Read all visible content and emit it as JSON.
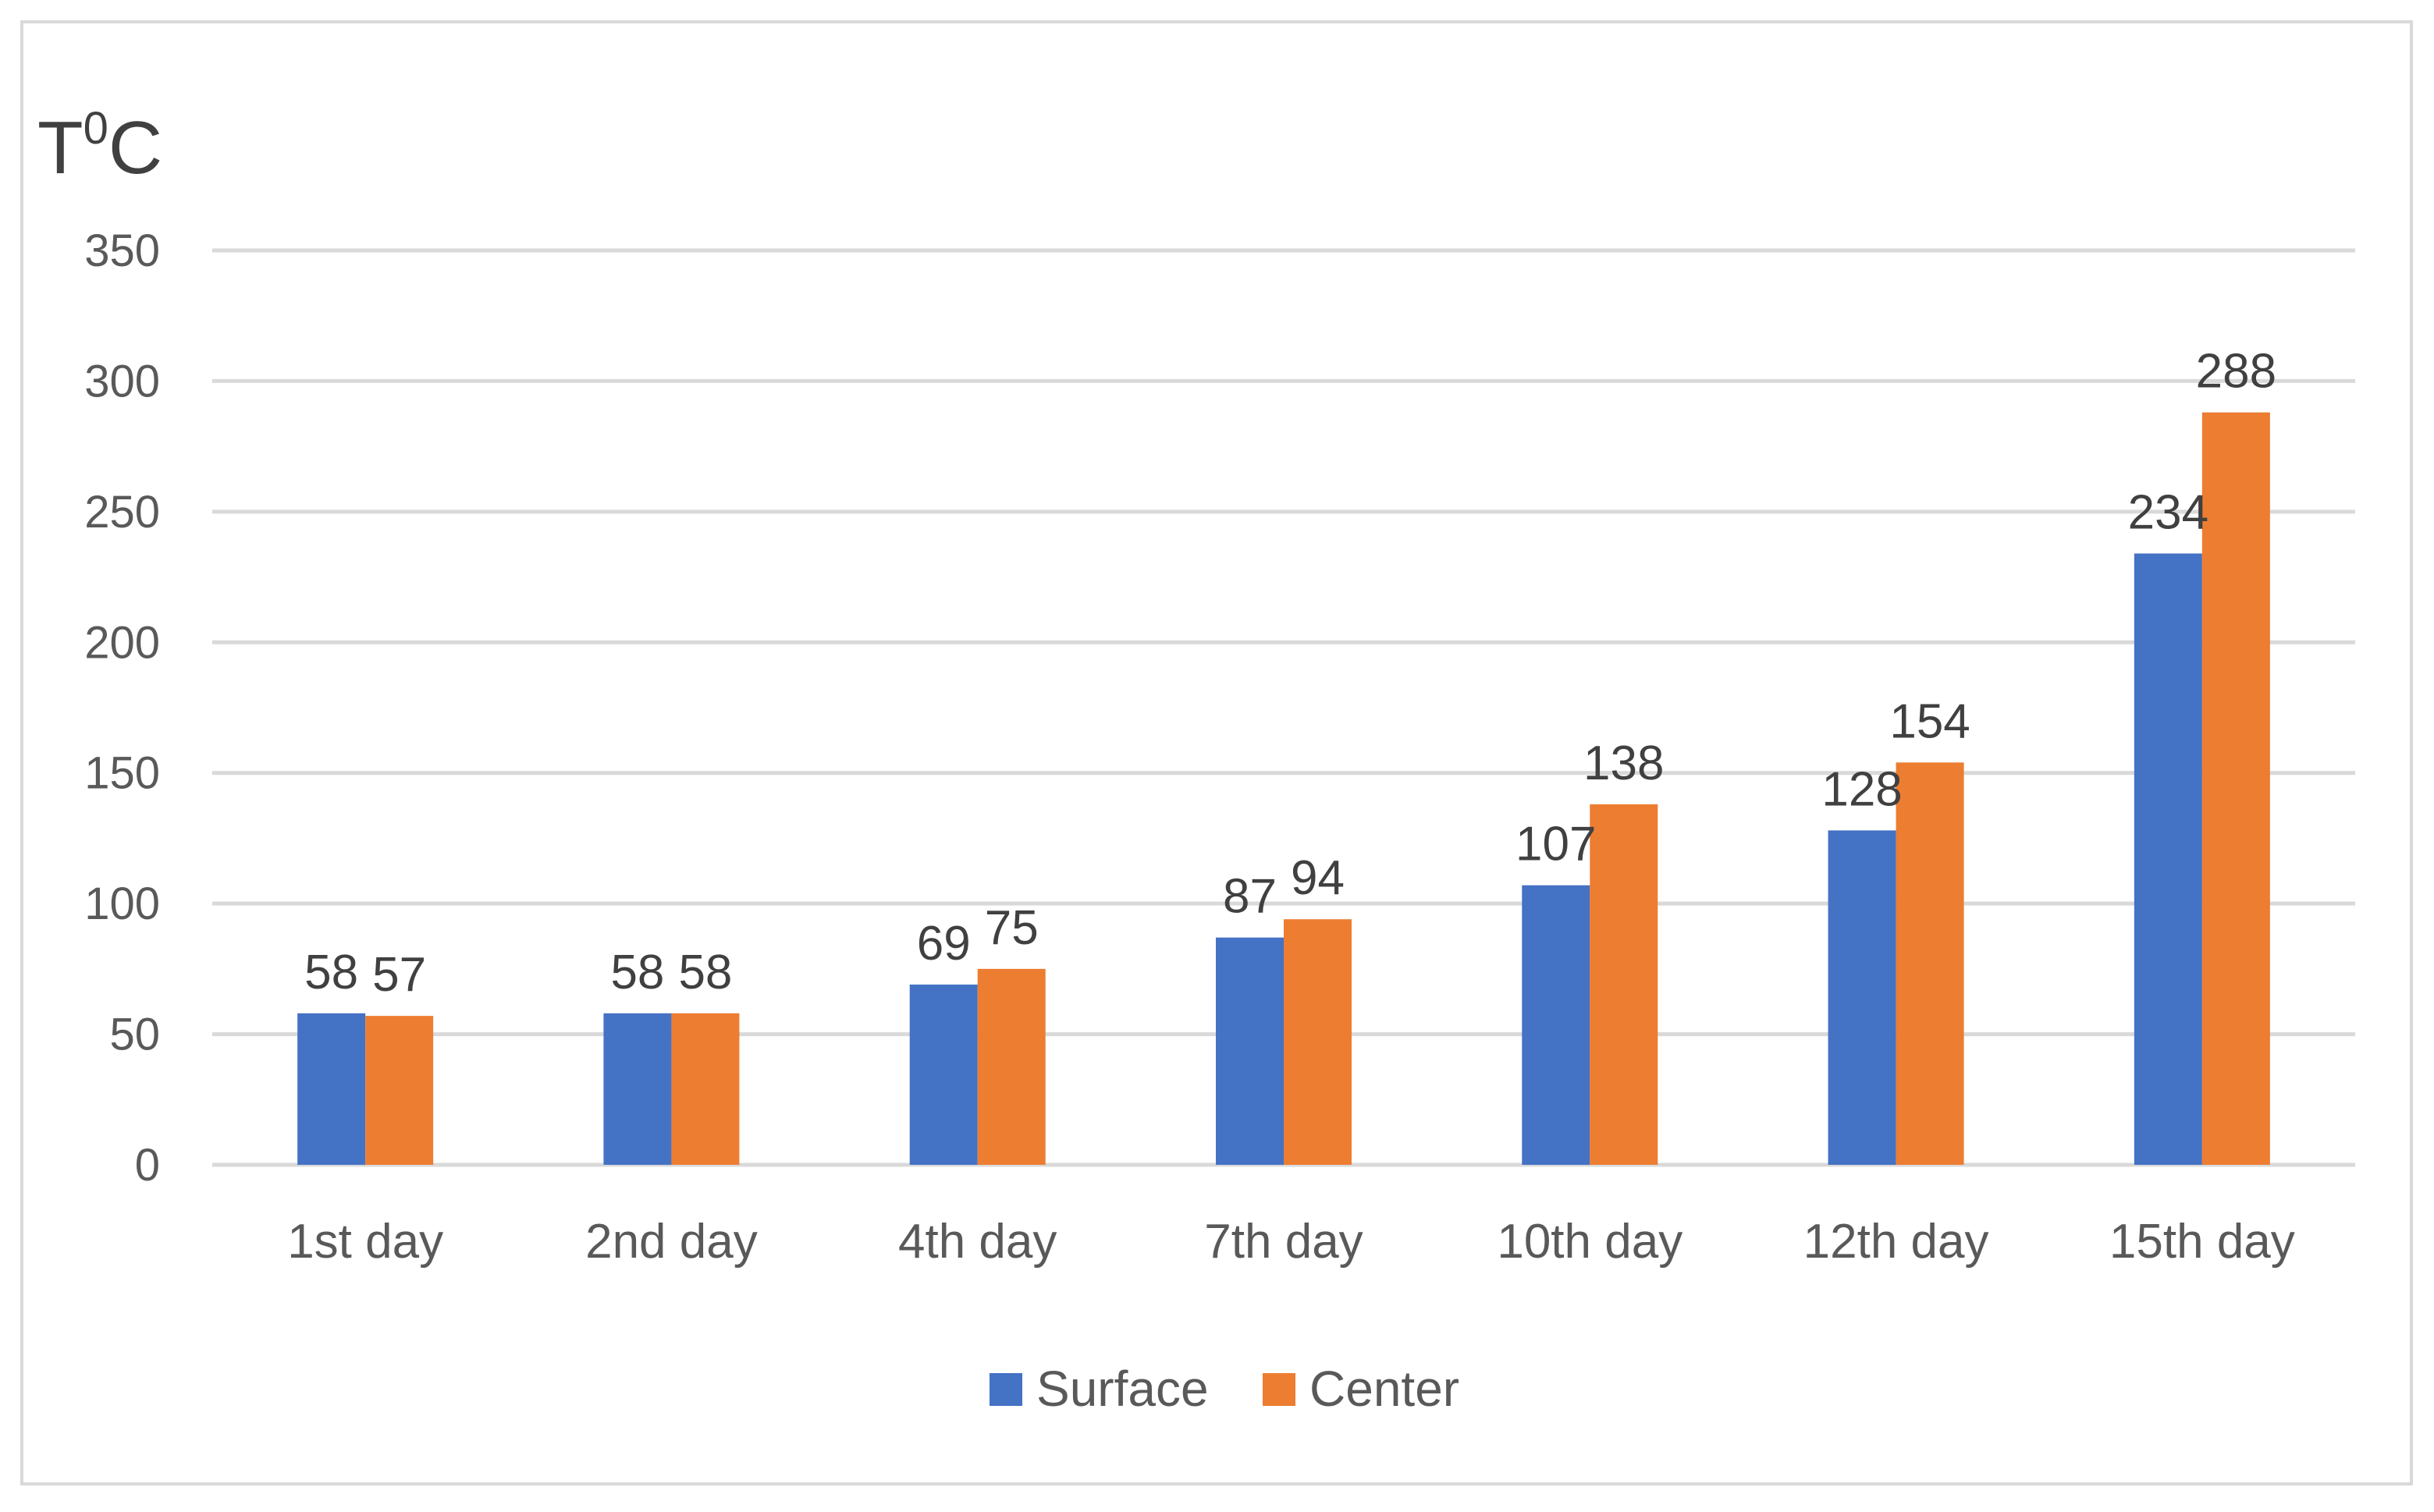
{
  "chart_data": {
    "type": "bar",
    "ylabel": "T",
    "ylabel_sup": "0",
    "ylabel_unit": "C",
    "categories": [
      "1st day",
      "2nd day",
      "4th day",
      "7th day",
      "10th day",
      "12th day",
      "15th day"
    ],
    "series": [
      {
        "name": "Surface",
        "color": "#4472c4",
        "values": [
          58,
          58,
          69,
          87,
          107,
          128,
          234
        ]
      },
      {
        "name": "Center",
        "color": "#ed7d31",
        "values": [
          57,
          58,
          75,
          94,
          138,
          154,
          288
        ]
      }
    ],
    "ylim": [
      0,
      350
    ],
    "yticks": [
      0,
      50,
      100,
      150,
      200,
      250,
      300,
      350
    ],
    "grid": true,
    "legend_position": "bottom",
    "data_labels": true
  }
}
